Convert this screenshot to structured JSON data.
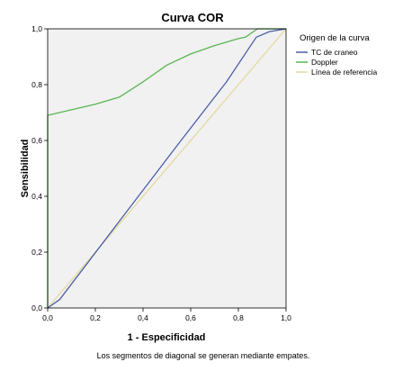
{
  "chart_data": {
    "type": "line",
    "title": "Curva COR",
    "xlabel": "1 - Especificidad",
    "ylabel": "Sensibilidad",
    "xlim": [
      0,
      1
    ],
    "ylim": [
      0,
      1
    ],
    "xticks": [
      "0,0",
      "0,2",
      "0,4",
      "0,6",
      "0,8",
      "1,0"
    ],
    "yticks": [
      "0,0",
      "0,2",
      "0,4",
      "0,6",
      "0,8",
      "1,0"
    ],
    "grid": false,
    "legend_title": "Origen de la curva",
    "legend_position": "right",
    "footnote": "Los segmentos de diagonal se generan mediante empates.",
    "series": [
      {
        "name": "TC de craneo",
        "color": "#4b5fa8",
        "x": [
          0.0,
          0.05,
          0.3,
          0.55,
          0.75,
          0.875,
          0.93,
          1.0
        ],
        "y": [
          0.0,
          0.03,
          0.31,
          0.59,
          0.81,
          0.97,
          0.99,
          1.0
        ]
      },
      {
        "name": "Doppler",
        "color": "#5ab552",
        "x": [
          0.0,
          0.0,
          0.1,
          0.2,
          0.3,
          0.4,
          0.5,
          0.6,
          0.7,
          0.8,
          0.83,
          0.88,
          1.0
        ],
        "y": [
          0.0,
          0.69,
          0.71,
          0.73,
          0.755,
          0.81,
          0.87,
          0.91,
          0.94,
          0.965,
          0.97,
          1.0,
          1.0
        ]
      },
      {
        "name": "Línea de referencia",
        "color": "#e3d9a0",
        "x": [
          0.0,
          1.0
        ],
        "y": [
          0.0,
          1.0
        ]
      }
    ]
  }
}
